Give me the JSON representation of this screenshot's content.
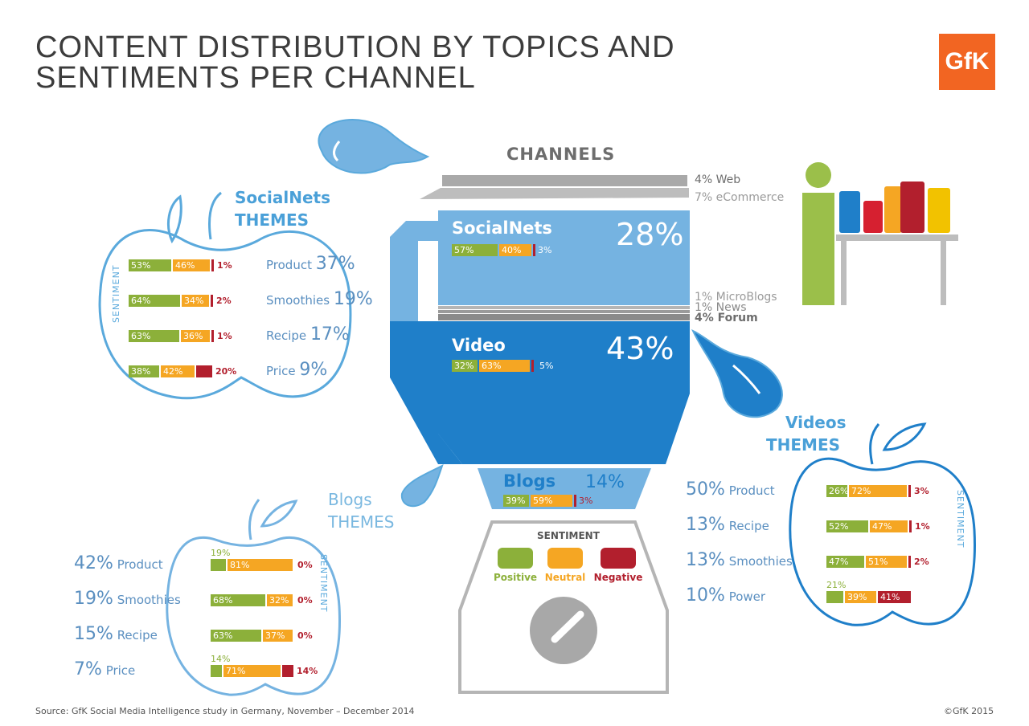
{
  "title_line1": "CONTENT DISTRIBUTION BY TOPICS AND",
  "title_line2": "SENTIMENTS PER CHANNEL",
  "logo": "GfK",
  "colors": {
    "positive": "#8cb03a",
    "neutral": "#f5a623",
    "negative": "#b21f2d",
    "blue_light": "#75b3e1",
    "blue_dark": "#1f7fc9",
    "outline": "#5aa9dc"
  },
  "chart_data": {
    "type": "bar",
    "title": "CONTENT DISTRIBUTION BY TOPICS AND SENTIMENTS PER CHANNEL",
    "channels_header": "CHANNELS",
    "channels": [
      {
        "name": "Web",
        "share": "4% Web"
      },
      {
        "name": "eCommerce",
        "share": "7% eCommerce"
      },
      {
        "name": "SocialNets",
        "share": "28%",
        "positive": "57%",
        "neutral": "40%",
        "negative": "3%"
      },
      {
        "name": "MicroBlogs",
        "share": "1% MicroBlogs"
      },
      {
        "name": "News",
        "share": "1% News"
      },
      {
        "name": "Forum",
        "share": "4% Forum"
      },
      {
        "name": "Video",
        "share": "43%",
        "positive": "32%",
        "neutral": "63%",
        "negative": "5%"
      },
      {
        "name": "Blogs",
        "share": "14%",
        "positive": "39%",
        "neutral": "59%",
        "negative": "3%"
      }
    ],
    "legend": {
      "title": "SENTIMENT",
      "positive": "Positive",
      "neutral": "Neutral",
      "negative": "Negative"
    },
    "sentiment_axis_label": "SENTIMENT",
    "socialnets_themes": {
      "title1": "SocialNets",
      "title2": "THEMES",
      "rows": [
        {
          "topic": "Product",
          "share": "37%",
          "positive": 53,
          "neutral": 46,
          "negative": 1,
          "pl": "53%",
          "nl": "46%",
          "gl": "1%"
        },
        {
          "topic": "Smoothies",
          "share": "19%",
          "positive": 64,
          "neutral": 34,
          "negative": 2,
          "pl": "64%",
          "nl": "34%",
          "gl": "2%"
        },
        {
          "topic": "Recipe",
          "share": "17%",
          "positive": 63,
          "neutral": 36,
          "negative": 1,
          "pl": "63%",
          "nl": "36%",
          "gl": "1%"
        },
        {
          "topic": "Price",
          "share": "9%",
          "positive": 38,
          "neutral": 42,
          "negative": 20,
          "pl": "38%",
          "nl": "42%",
          "gl": "20%"
        }
      ]
    },
    "videos_themes": {
      "title1": "Videos",
      "title2": "THEMES",
      "rows": [
        {
          "topic": "Product",
          "share": "50%",
          "positive": 26,
          "neutral": 72,
          "negative": 3,
          "pl": "26%",
          "nl": "72%",
          "gl": "3%"
        },
        {
          "topic": "Recipe",
          "share": "13%",
          "positive": 52,
          "neutral": 47,
          "negative": 1,
          "pl": "52%",
          "nl": "47%",
          "gl": "1%"
        },
        {
          "topic": "Smoothies",
          "share": "13%",
          "positive": 47,
          "neutral": 51,
          "negative": 2,
          "pl": "47%",
          "nl": "51%",
          "gl": "2%"
        },
        {
          "topic": "Power",
          "share": "10%",
          "positive": 21,
          "neutral": 39,
          "negative": 41,
          "pl": "21%",
          "nl": "39%",
          "gl": "41%"
        }
      ]
    },
    "blogs_themes": {
      "title1": "Blogs",
      "title2": "THEMES",
      "rows": [
        {
          "topic": "Product",
          "share": "42%",
          "positive": 19,
          "neutral": 81,
          "negative": 0,
          "pl": "19%",
          "nl": "81%",
          "gl": "0%"
        },
        {
          "topic": "Smoothies",
          "share": "19%",
          "positive": 68,
          "neutral": 32,
          "negative": 0,
          "pl": "68%",
          "nl": "32%",
          "gl": "0%"
        },
        {
          "topic": "Recipe",
          "share": "15%",
          "positive": 63,
          "neutral": 37,
          "negative": 0,
          "pl": "63%",
          "nl": "37%",
          "gl": "0%"
        },
        {
          "topic": "Price",
          "share": "7%",
          "positive": 14,
          "neutral": 71,
          "negative": 14,
          "pl": "14%",
          "nl": "71%",
          "gl": "14%"
        }
      ]
    }
  },
  "footer_source": "Source: GfK Social Media Intelligence study in Germany, November – December 2014",
  "footer_copyright": "©GfK 2015"
}
